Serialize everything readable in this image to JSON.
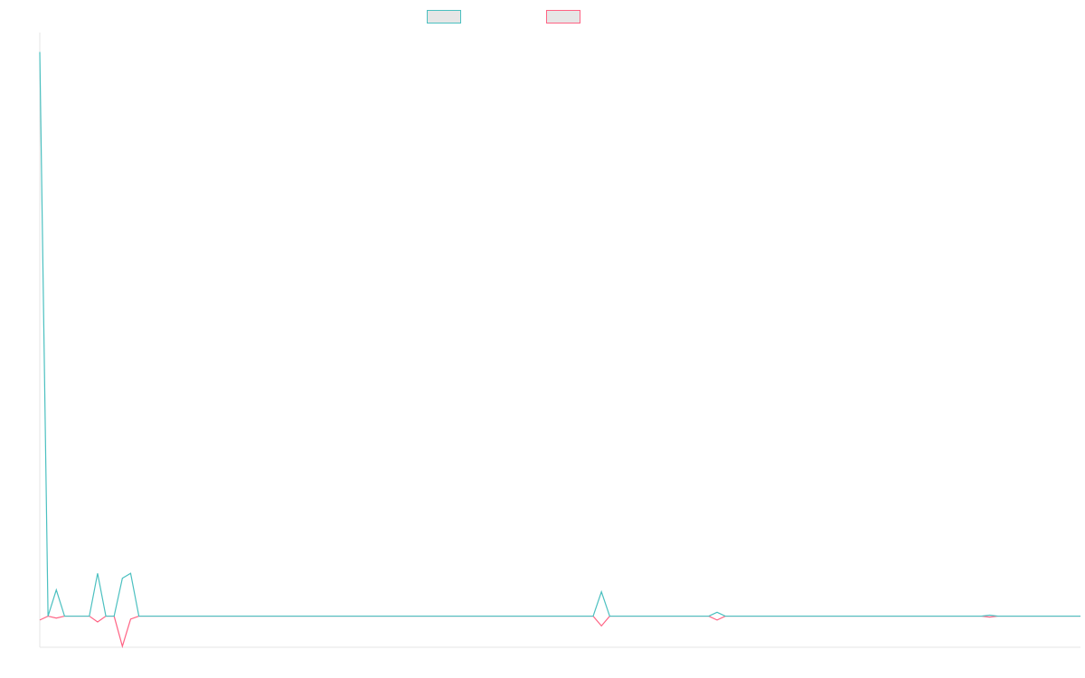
{
  "chart_data": {
    "type": "line",
    "title": "",
    "xlabel": "",
    "ylabel": "",
    "grid": false,
    "legend_position": "top",
    "categories_count": 127,
    "ylim": [
      -1.6,
      30
    ],
    "series": [
      {
        "name": "",
        "color": "#4bc0c0",
        "values": [
          29,
          0,
          1.35,
          0,
          0,
          0,
          0,
          2.2,
          0,
          0,
          1.95,
          2.2,
          0,
          0,
          0,
          0,
          0,
          0,
          0,
          0,
          0,
          0,
          0,
          0,
          0,
          0,
          0,
          0,
          0,
          0,
          0,
          0,
          0,
          0,
          0,
          0,
          0,
          0,
          0,
          0,
          0,
          0,
          0,
          0,
          0,
          0,
          0,
          0,
          0,
          0,
          0,
          0,
          0,
          0,
          0,
          0,
          0,
          0,
          0,
          0,
          0,
          0,
          0,
          0,
          0,
          0,
          0,
          0,
          1.25,
          0,
          0,
          0,
          0,
          0,
          0,
          0,
          0,
          0,
          0,
          0,
          0,
          0,
          0.2,
          0,
          0,
          0,
          0,
          0,
          0,
          0,
          0,
          0,
          0,
          0,
          0,
          0,
          0,
          0,
          0,
          0,
          0,
          0,
          0,
          0,
          0,
          0,
          0,
          0,
          0,
          0,
          0,
          0,
          0,
          0,
          0,
          0.05,
          0,
          0,
          0,
          0,
          0,
          0,
          0,
          0,
          0,
          0,
          0
        ]
      },
      {
        "name": "",
        "color": "#ff6384",
        "values": [
          -0.2,
          0,
          -0.1,
          0,
          0,
          0,
          0,
          -0.3,
          0,
          0,
          -1.55,
          -0.15,
          0,
          0,
          0,
          0,
          0,
          0,
          0,
          0,
          0,
          0,
          0,
          0,
          0,
          0,
          0,
          0,
          0,
          0,
          0,
          0,
          0,
          0,
          0,
          0,
          0,
          0,
          0,
          0,
          0,
          0,
          0,
          0,
          0,
          0,
          0,
          0,
          0,
          0,
          0,
          0,
          0,
          0,
          0,
          0,
          0,
          0,
          0,
          0,
          0,
          0,
          0,
          0,
          0,
          0,
          0,
          0,
          -0.5,
          0,
          0,
          0,
          0,
          0,
          0,
          0,
          0,
          0,
          0,
          0,
          0,
          0,
          -0.2,
          0,
          0,
          0,
          0,
          0,
          0,
          0,
          0,
          0,
          0,
          0,
          0,
          0,
          0,
          0,
          0,
          0,
          0,
          0,
          0,
          0,
          0,
          0,
          0,
          0,
          0,
          0,
          0,
          0,
          0,
          0,
          0,
          -0.05,
          0,
          0,
          0,
          0,
          0,
          0,
          0,
          0,
          0,
          0,
          0
        ]
      }
    ]
  },
  "legend": {
    "items": [
      {
        "label": "",
        "border_color": "#4bc0c0",
        "fill_color": "#e6e6e6"
      },
      {
        "label": "",
        "border_color": "#ff6384",
        "fill_color": "#e6e6e6"
      }
    ]
  }
}
